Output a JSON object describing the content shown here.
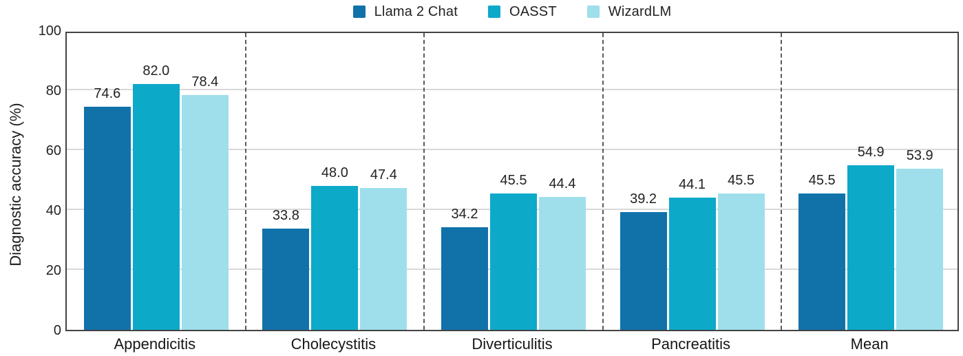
{
  "chart_data": {
    "type": "bar",
    "title": "",
    "categories": [
      "Appendicitis",
      "Cholecystitis",
      "Diverticulitis",
      "Pancreatitis",
      "Mean"
    ],
    "series": [
      {
        "name": "Llama 2 Chat",
        "color": "#1172aa",
        "values": [
          74.6,
          33.8,
          34.2,
          39.2,
          45.5
        ]
      },
      {
        "name": "OASST",
        "color": "#0da9c9",
        "values": [
          82.0,
          48.0,
          45.5,
          44.1,
          54.9
        ]
      },
      {
        "name": "WizardLM",
        "color": "#9fdfeb",
        "values": [
          78.4,
          47.4,
          44.4,
          45.5,
          53.9
        ]
      }
    ],
    "xlabel": "",
    "ylabel": "Diagnostic accuracy (%)",
    "ylim": [
      0,
      100
    ],
    "yticks": [
      0,
      20,
      40,
      60,
      80,
      100
    ],
    "grid": true,
    "group_separators": "dashed",
    "legend_position": "top-center",
    "value_labels": true,
    "value_label_format": "one-decimal"
  },
  "colors": {
    "axis_border": "#424242",
    "gridline": "#d9d9d9",
    "separator": "#5a5a5a",
    "text": "#222222"
  }
}
